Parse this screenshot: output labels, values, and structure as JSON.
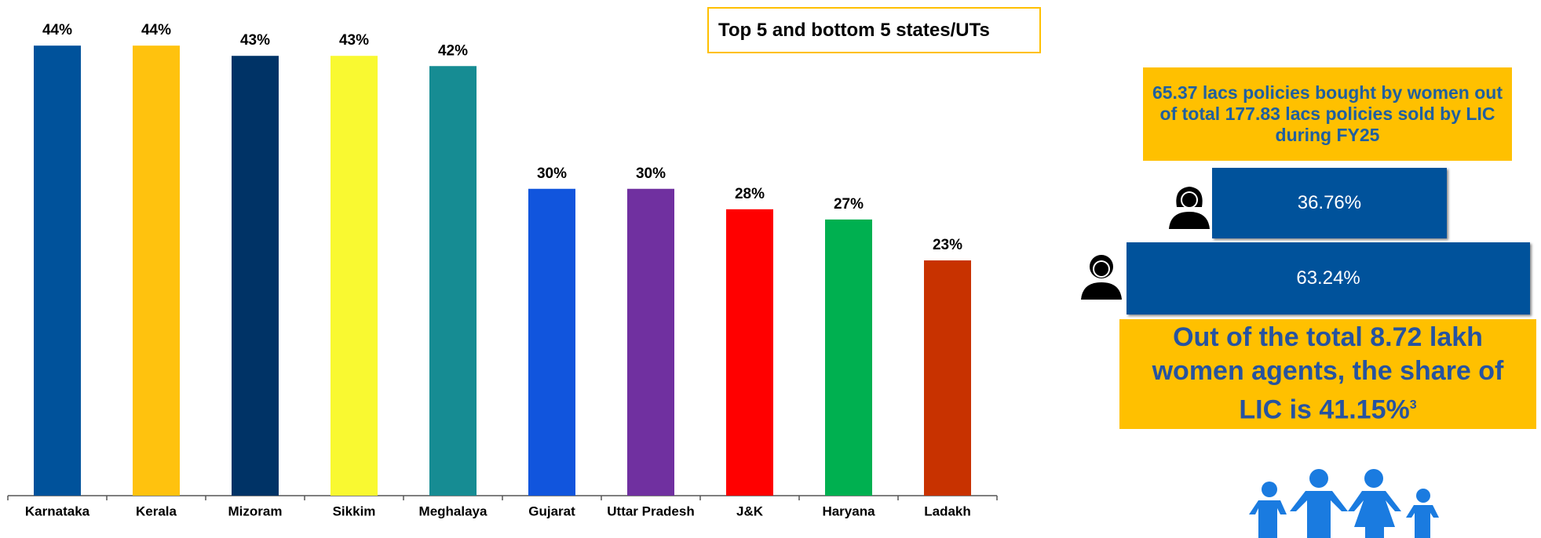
{
  "chart_data": {
    "type": "bar",
    "title": "Top 5 and bottom 5 states/UTs",
    "categories": [
      "Karnataka",
      "Kerala",
      "Mizoram",
      "Sikkim",
      "Meghalaya",
      "Gujarat",
      "Uttar Pradesh",
      "J&K",
      "Haryana",
      "Ladakh"
    ],
    "values": [
      44,
      44,
      43,
      43,
      42,
      30,
      30,
      28,
      27,
      23
    ],
    "value_labels": [
      "44%",
      "44%",
      "43%",
      "43%",
      "42%",
      "30%",
      "30%",
      "28%",
      "27%",
      "23%"
    ],
    "colors": [
      "#00529b",
      "#ffc20e",
      "#003366",
      "#f9f931",
      "#168c93",
      "#1155dd",
      "#7030a0",
      "#ff0000",
      "#00b050",
      "#c83200"
    ],
    "ylim": [
      0,
      48
    ]
  },
  "panel": {
    "policy_text": "65.37 lacs policies bought by women out of total 177.83 lacs policies sold by LIC during FY25",
    "shares": {
      "values": [
        36.76,
        63.24
      ],
      "value_labels": [
        "36.76%",
        "63.24%"
      ]
    },
    "agent_text": "Out of the total 8.72 lakh women agents, the share of LIC is 41.15%",
    "agent_footnote": "3"
  }
}
